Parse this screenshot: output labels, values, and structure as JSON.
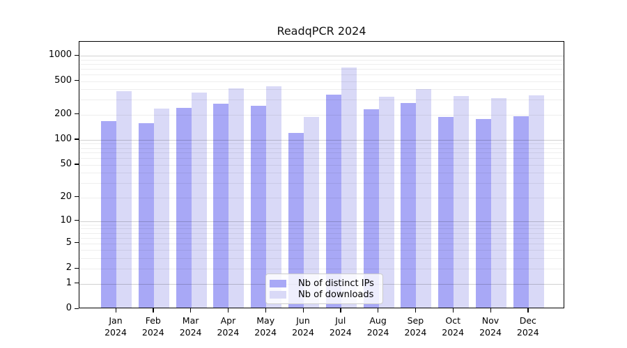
{
  "title": "ReadqPCR 2024",
  "legend": {
    "items": [
      {
        "label": "Nb of distinct IPs",
        "color": "#a8a8f6"
      },
      {
        "label": "Nb of downloads",
        "color": "#d9d9f7"
      }
    ]
  },
  "colors": {
    "distinct_ips_bar": "#a8a8f6",
    "downloads_bar": "#d9d9f7",
    "frame": "#000000",
    "major_grid": "rgba(0,0,0,0.18)",
    "minor_grid": "rgba(0,0,0,0.065)"
  },
  "chart_data": {
    "type": "bar",
    "title": "ReadqPCR 2024",
    "categories": [
      "Jan",
      "Feb",
      "Mar",
      "Apr",
      "May",
      "Jun",
      "Jul",
      "Aug",
      "Sep",
      "Oct",
      "Nov",
      "Dec"
    ],
    "year": "2024",
    "series": [
      {
        "name": "Nb of distinct IPs",
        "color": "#a8a8f6",
        "values": [
          162,
          153,
          232,
          260,
          246,
          116,
          332,
          223,
          264,
          180,
          171,
          185
        ]
      },
      {
        "name": "Nb of downloads",
        "color": "#d9d9f7",
        "values": [
          366,
          228,
          352,
          395,
          418,
          181,
          698,
          314,
          387,
          320,
          303,
          327
        ]
      }
    ],
    "y_axis": {
      "scale": "log1p",
      "ticks": [
        1000,
        500,
        200,
        100,
        50,
        20,
        10,
        5,
        2,
        1,
        0
      ],
      "major_gridlines": [
        1,
        10,
        100,
        1000
      ],
      "minor_gridlines": [
        2,
        3,
        4,
        5,
        6,
        7,
        8,
        9,
        20,
        30,
        40,
        50,
        60,
        70,
        80,
        90,
        200,
        300,
        400,
        500,
        600,
        700,
        800,
        900
      ],
      "max": 1000
    },
    "xlabel": "",
    "ylabel": "",
    "grid": "horizontal, drawn over bars",
    "legend_position": "lower center inside plot"
  }
}
